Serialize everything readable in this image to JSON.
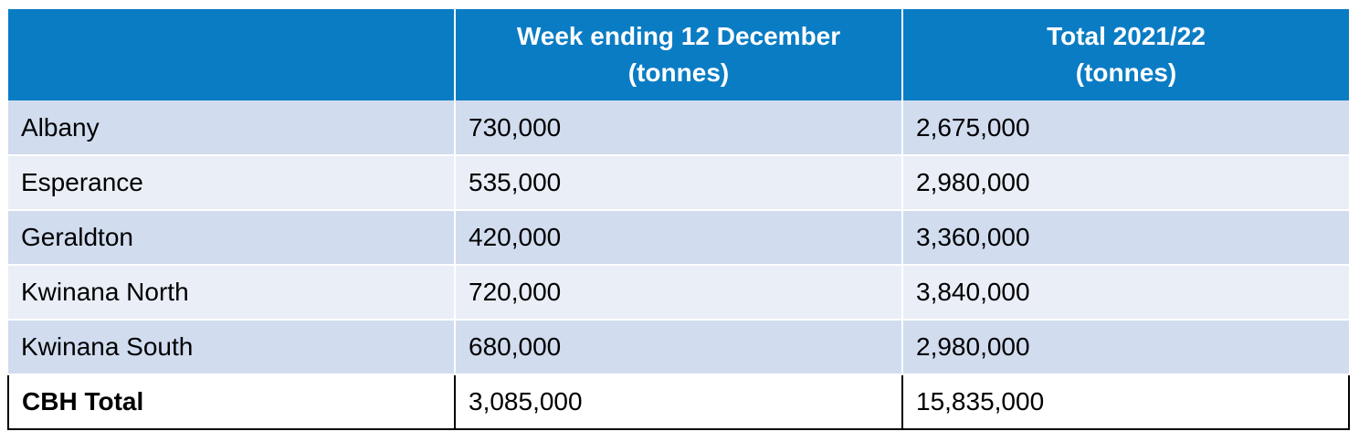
{
  "table": {
    "headers": [
      {
        "line1": "",
        "line2": ""
      },
      {
        "line1": "Week ending 12 December",
        "line2": "(tonnes)"
      },
      {
        "line1": "Total 2021/22",
        "line2": "(tonnes)"
      }
    ],
    "rows": [
      {
        "port": "Albany",
        "week": "730,000",
        "total": "2,675,000"
      },
      {
        "port": "Esperance",
        "week": "535,000",
        "total": "2,980,000"
      },
      {
        "port": "Geraldton",
        "week": "420,000",
        "total": "3,360,000"
      },
      {
        "port": "Kwinana North",
        "week": "720,000",
        "total": "3,840,000"
      },
      {
        "port": "Kwinana South",
        "week": "680,000",
        "total": "2,980,000"
      }
    ],
    "total_row": {
      "port": "CBH Total",
      "week": "3,085,000",
      "total": "15,835,000"
    }
  },
  "colors": {
    "header_bg": "#0a7cc4",
    "row_dark": "#d1dcef",
    "row_light": "#e9eef7"
  }
}
